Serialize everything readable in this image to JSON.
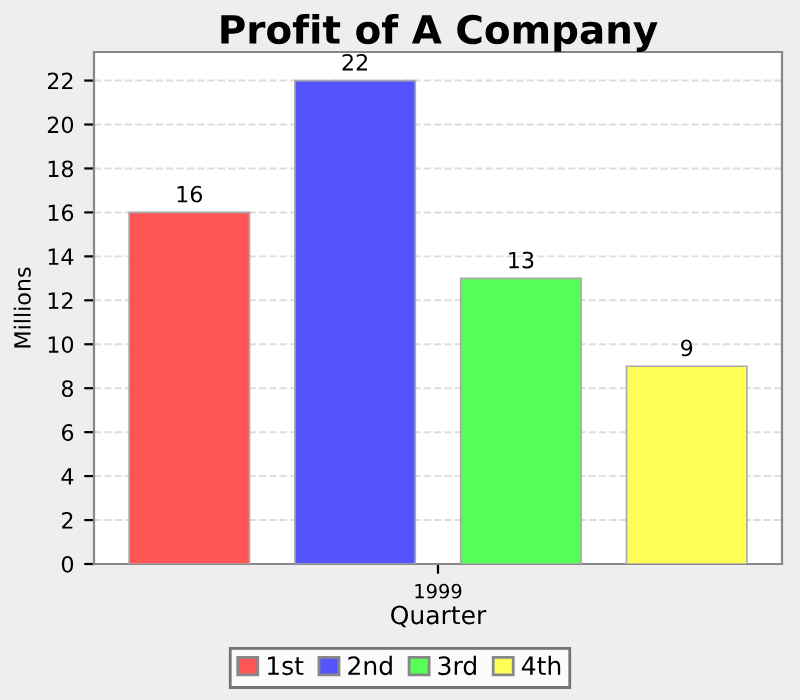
{
  "chart_data": {
    "type": "bar",
    "title": "Profit of A Company",
    "xlabel": "Quarter",
    "ylabel": "Millions",
    "categories": [
      "1999"
    ],
    "series": [
      {
        "name": "1st",
        "color": "#ff5555",
        "values": [
          16
        ]
      },
      {
        "name": "2nd",
        "color": "#5555ff",
        "values": [
          22
        ]
      },
      {
        "name": "3rd",
        "color": "#55ff55",
        "values": [
          13
        ]
      },
      {
        "name": "4th",
        "color": "#ffff55",
        "values": [
          9
        ]
      }
    ],
    "ylim": [
      0,
      23.3
    ],
    "yticks": [
      0,
      2,
      4,
      6,
      8,
      10,
      12,
      14,
      16,
      18,
      20,
      22
    ],
    "grid": "y",
    "legend": "bottom",
    "data_labels": true
  }
}
